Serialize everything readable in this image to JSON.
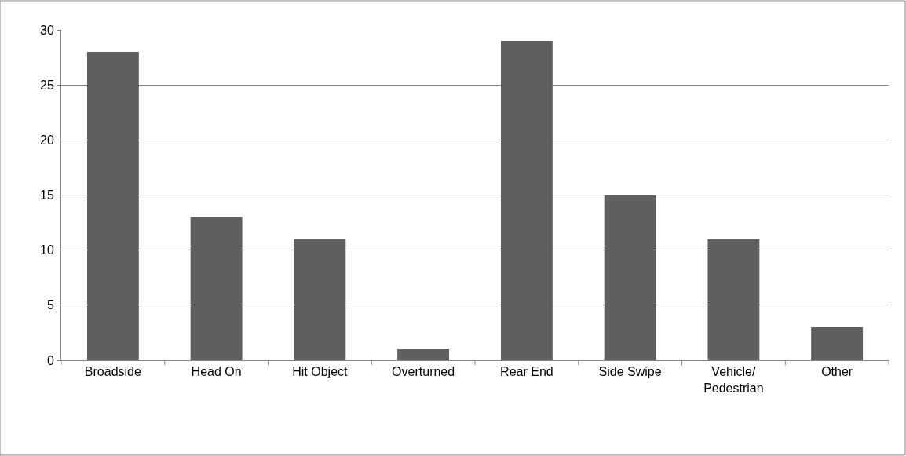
{
  "chart_data": {
    "type": "bar",
    "categories": [
      "Broadside",
      "Head On",
      "Hit Object",
      "Overturned",
      "Rear End",
      "Side Swipe",
      "Vehicle/\nPedestrian",
      "Other"
    ],
    "values": [
      28,
      13,
      11,
      1,
      29,
      15,
      11,
      3
    ],
    "color": "#5f5f5f",
    "ylim": [
      0,
      30
    ],
    "yticks": [
      0,
      5,
      10,
      15,
      20,
      25,
      30
    ],
    "grid": "y",
    "legend": false
  }
}
